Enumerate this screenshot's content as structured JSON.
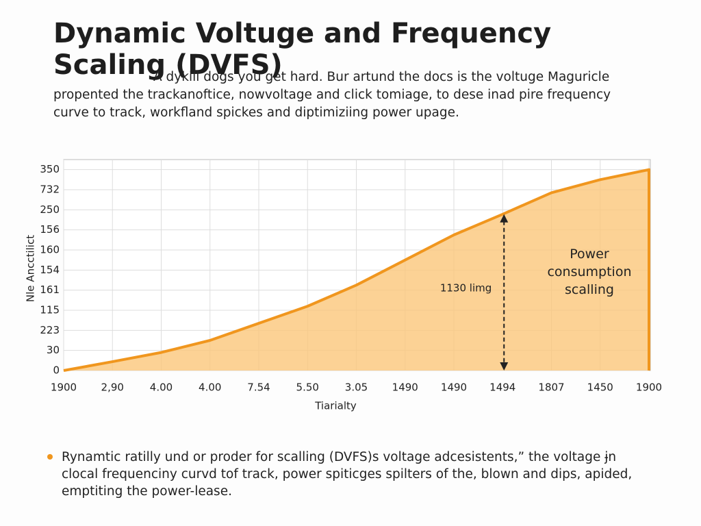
{
  "chart_data": {
    "type": "area",
    "title": "Dynamic Voltuge and Frequency Scaling (DVFS)",
    "subtitle": "A dykill dogs you get hard. Bur artund the docs is the voltuge Maguricle propented the trackanoftice, nowvoltage and click tomiage, to dese inad pire frequency curve to track, workfland spickes and diptimiziing power upage.",
    "x_label": "Tiarialty",
    "y_label": "Nle Ancctilict",
    "categories": [
      "1900",
      "2,90",
      "4.00",
      "4.00",
      "7.54",
      "5.50",
      "3.05",
      "1490",
      "1490",
      "1494",
      "1807",
      "1450",
      "1900"
    ],
    "series": [
      {
        "name": "Power",
        "color": "#f0961e",
        "values": [
          0,
          0.44,
          0.9,
          1.5,
          2.35,
          3.2,
          4.25,
          5.5,
          6.75,
          7.78,
          8.85,
          9.5,
          10
        ]
      }
    ],
    "ylim": [
      0,
      10.5
    ],
    "yticks": [
      0,
      {
        "value": 1,
        "label": "30"
      },
      {
        "value": 2,
        "label": "223"
      },
      {
        "value": 3,
        "label": "115"
      },
      {
        "value": 4,
        "label": "161"
      },
      {
        "value": 5,
        "label": "154"
      },
      {
        "value": 6,
        "label": "160"
      },
      {
        "value": 7,
        "label": "156"
      },
      {
        "value": 8,
        "label": "250"
      },
      {
        "value": 9,
        "label": "732"
      },
      {
        "value": 10,
        "label": "350"
      }
    ],
    "grid": true,
    "annotations": [
      "1130 limg",
      "Power consumption scalling"
    ],
    "note": "Rynamtic ratilly und or proder for scalling (DVFS)s voltage adcesistents,” the voltage ɉn clocal frequenciny curvd tof track, power spiticges spilters of the, blown and dips, apided, emptiting the power-lease."
  }
}
